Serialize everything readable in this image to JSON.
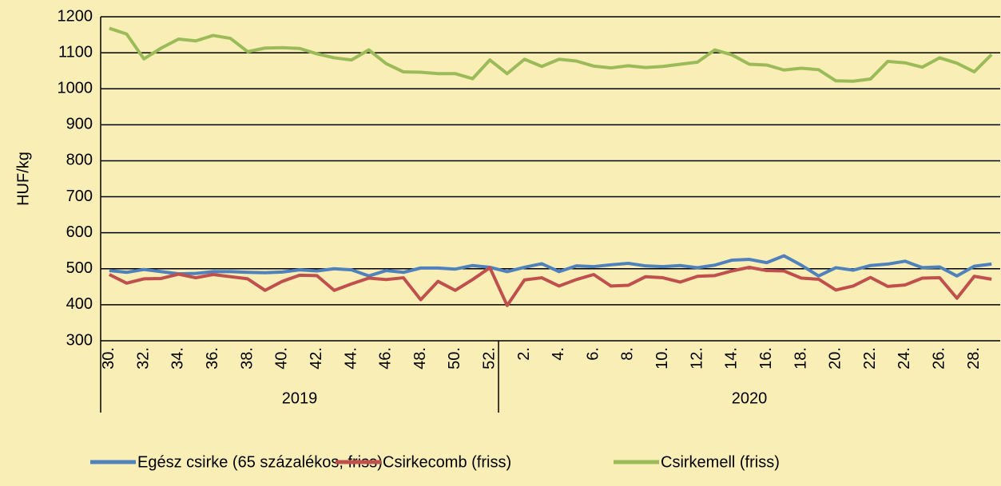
{
  "chart_data": {
    "type": "line",
    "ylabel": "HUF/kg",
    "categories": [
      "30.",
      null,
      "32.",
      null,
      "34.",
      null,
      "36.",
      null,
      "38.",
      null,
      "40.",
      null,
      "42.",
      null,
      "44.",
      null,
      "46.",
      null,
      "48.",
      null,
      "50.",
      null,
      "52.",
      null,
      "2.",
      null,
      "4.",
      null,
      "6.",
      null,
      "8.",
      null,
      "10.",
      null,
      "12.",
      null,
      "14.",
      null,
      "16.",
      null,
      "18.",
      null,
      "20.",
      null,
      "22.",
      null,
      "24.",
      null,
      "26.",
      null,
      "28.",
      null
    ],
    "groups": [
      {
        "label": "2019",
        "size": 23
      },
      {
        "label": "2020",
        "size": 29
      }
    ],
    "series": [
      {
        "name": "Egész csirke (65 százalékos, friss)",
        "color": "#4f81bd",
        "values": [
          495,
          490,
          498,
          492,
          486,
          487,
          492,
          492,
          490,
          489,
          491,
          497,
          494,
          500,
          497,
          480,
          495,
          490,
          502,
          502,
          499,
          509,
          504,
          492,
          504,
          514,
          492,
          508,
          506,
          511,
          515,
          508,
          506,
          509,
          503,
          510,
          524,
          526,
          517,
          536,
          510,
          480,
          503,
          496,
          509,
          513,
          521,
          503,
          505,
          480,
          507,
          513
        ]
      },
      {
        "name": "Csirkecomb (friss)",
        "color": "#c0504d",
        "values": [
          484,
          460,
          472,
          473,
          485,
          475,
          484,
          478,
          472,
          440,
          465,
          482,
          481,
          440,
          458,
          474,
          470,
          475,
          414,
          465,
          440,
          470,
          503,
          398,
          469,
          475,
          452,
          470,
          484,
          452,
          454,
          478,
          475,
          463,
          479,
          481,
          494,
          504,
          495,
          494,
          474,
          471,
          441,
          452,
          476,
          451,
          455,
          474,
          475,
          418,
          479,
          471
        ]
      },
      {
        "name": "Csirkemell (friss)",
        "color": "#9bbb59",
        "values": [
          1168,
          1152,
          1083,
          1113,
          1138,
          1133,
          1148,
          1140,
          1103,
          1113,
          1114,
          1112,
          1097,
          1086,
          1080,
          1108,
          1070,
          1047,
          1046,
          1042,
          1042,
          1028,
          1080,
          1042,
          1082,
          1062,
          1082,
          1077,
          1063,
          1058,
          1064,
          1059,
          1062,
          1068,
          1074,
          1108,
          1094,
          1068,
          1066,
          1052,
          1057,
          1053,
          1022,
          1021,
          1027,
          1076,
          1072,
          1060,
          1086,
          1071,
          1047,
          1095
        ]
      }
    ],
    "ylim": [
      300,
      1200
    ],
    "yticks": [
      300,
      400,
      500,
      600,
      700,
      800,
      900,
      1000,
      1100,
      1200
    ],
    "grid": true
  }
}
